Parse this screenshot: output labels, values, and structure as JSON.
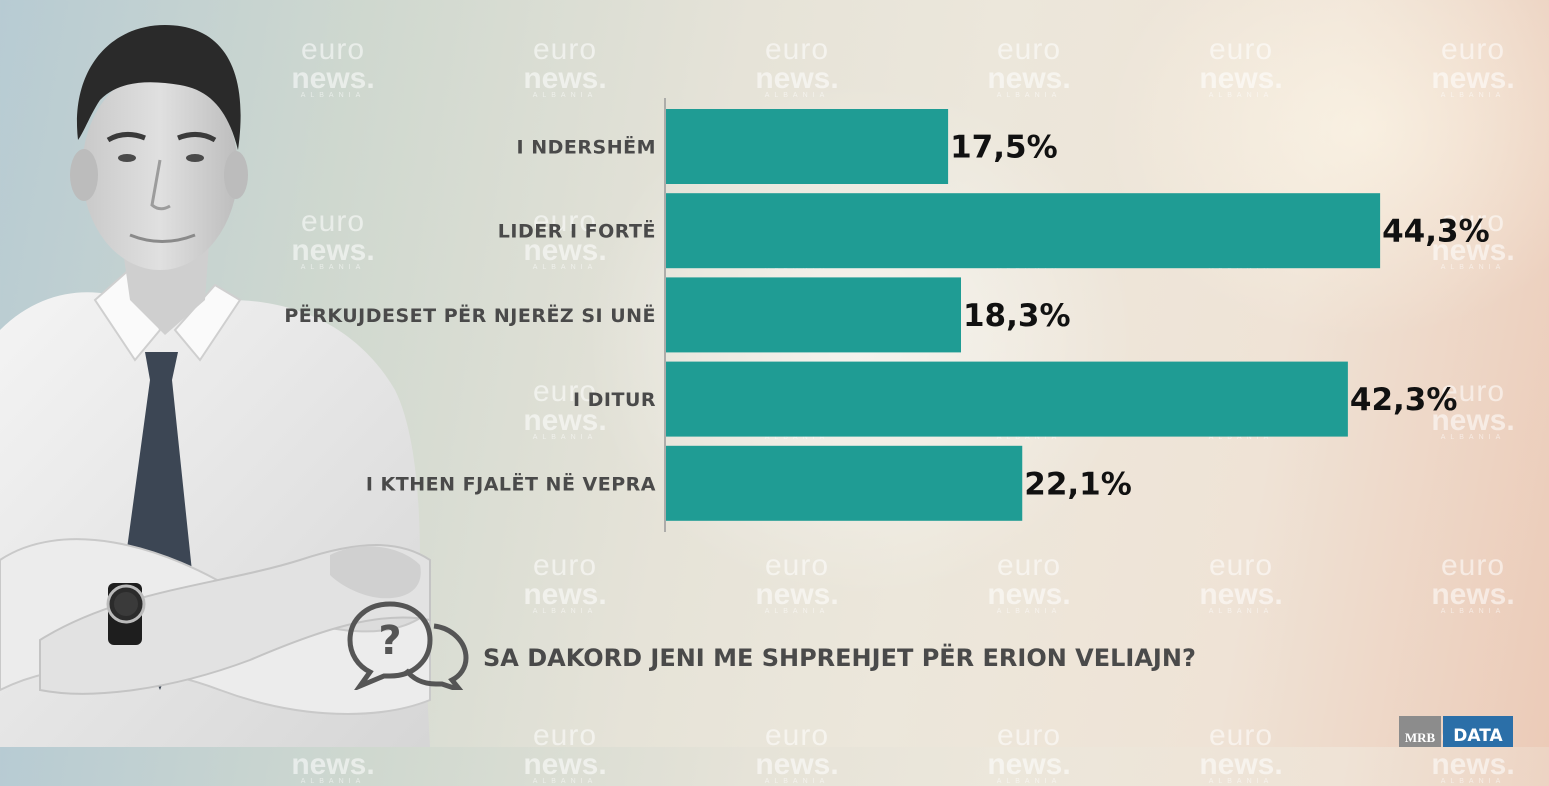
{
  "watermark": {
    "line1": "euro",
    "line2": "news.",
    "line3": "ALBANIA"
  },
  "question": {
    "text": "SA DAKORD JENI ME SHPREHJET PËR ERION VELIAJN?"
  },
  "logos": {
    "mrb": "MRB",
    "data": "DATA"
  },
  "colors": {
    "bar": "#1f9c94",
    "axis": "#9a9a9a"
  },
  "chart_data": {
    "type": "bar",
    "orientation": "horizontal",
    "categories": [
      "I NDERSHËM",
      "LIDER I FORTË",
      "PËRKUJDESET PËR NJERËZ SI UNË",
      "I DITUR",
      "I KTHEN FJALËT NË VEPRA"
    ],
    "values": [
      17.5,
      44.3,
      18.3,
      42.3,
      22.1
    ],
    "value_labels": [
      "17,5%",
      "44,3%",
      "18,3%",
      "42,3%",
      "22,1%"
    ],
    "title": "SA DAKORD JENI ME SHPREHJET PËR ERION VELIAJN?",
    "xlim": [
      0,
      50
    ],
    "grid": false
  }
}
